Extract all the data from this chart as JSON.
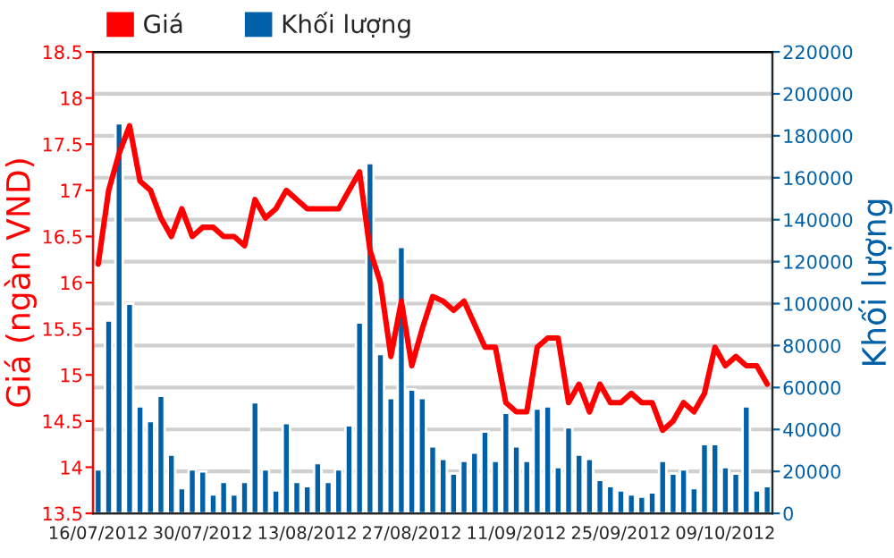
{
  "chart_data": {
    "type": "bar",
    "legend": "top left",
    "grid": "y",
    "ylabel": "Giá (ngàn VND)",
    "y2label": "Khối lượng",
    "categories": [
      "16/07/2012",
      null,
      null,
      null,
      null,
      null,
      null,
      null,
      null,
      null,
      "30/07/2012",
      null,
      null,
      null,
      null,
      null,
      null,
      null,
      null,
      null,
      "13/08/2012",
      null,
      null,
      null,
      null,
      null,
      null,
      null,
      null,
      null,
      "27/08/2012",
      null,
      null,
      null,
      null,
      null,
      null,
      null,
      null,
      null,
      "11/09/2012",
      null,
      null,
      null,
      null,
      null,
      null,
      null,
      null,
      null,
      "25/09/2012",
      null,
      null,
      null,
      null,
      null,
      null,
      null,
      null,
      null,
      "09/10/2012",
      null,
      null,
      null,
      null
    ],
    "ylim": [
      13.5,
      18.5
    ],
    "yticks": [
      13.5,
      14,
      14.5,
      15,
      15.5,
      16,
      16.5,
      17,
      17.5,
      18,
      18.5
    ],
    "y2lim": [
      0,
      220000
    ],
    "y2ticks": [
      0,
      20000,
      40000,
      60000,
      80000,
      100000,
      120000,
      140000,
      160000,
      180000,
      200000,
      220000
    ],
    "series": [
      {
        "name": "Giá",
        "type": "line",
        "color": "#ff0000",
        "values": [
          16.2,
          17.0,
          17.4,
          17.7,
          17.1,
          17.0,
          16.7,
          16.5,
          16.8,
          16.5,
          16.6,
          16.6,
          16.5,
          16.5,
          16.4,
          16.9,
          16.7,
          16.8,
          17.0,
          16.9,
          16.8,
          16.8,
          16.8,
          16.8,
          17.0,
          17.2,
          16.35,
          16.0,
          15.2,
          15.8,
          15.1,
          15.5,
          15.85,
          15.8,
          15.7,
          15.8,
          15.55,
          15.3,
          15.3,
          14.7,
          14.6,
          14.6,
          15.3,
          15.4,
          15.4,
          14.7,
          14.9,
          14.6,
          14.9,
          14.7,
          14.7,
          14.8,
          14.7,
          14.7,
          14.4,
          14.5,
          14.7,
          14.6,
          14.8,
          15.3,
          15.1,
          15.2,
          15.1,
          15.1,
          14.9
        ]
      },
      {
        "name": "Khối lượng",
        "axis": "y2",
        "color": "#0060a8",
        "values": [
          21000,
          92000,
          186000,
          100000,
          51000,
          44000,
          56000,
          28000,
          12000,
          21000,
          20000,
          9000,
          15000,
          9000,
          15000,
          53000,
          21000,
          11000,
          43000,
          15000,
          13000,
          24000,
          15000,
          21000,
          42000,
          91000,
          167000,
          76000,
          55000,
          127000,
          59000,
          55000,
          32000,
          26000,
          19000,
          25000,
          29000,
          39000,
          25000,
          48000,
          32000,
          25000,
          50000,
          51000,
          22000,
          41000,
          28000,
          26000,
          16000,
          13000,
          11000,
          9000,
          8000,
          10000,
          25000,
          19000,
          21000,
          12000,
          33000,
          33000,
          22000,
          19000,
          51000,
          11000,
          13000
        ]
      }
    ]
  }
}
